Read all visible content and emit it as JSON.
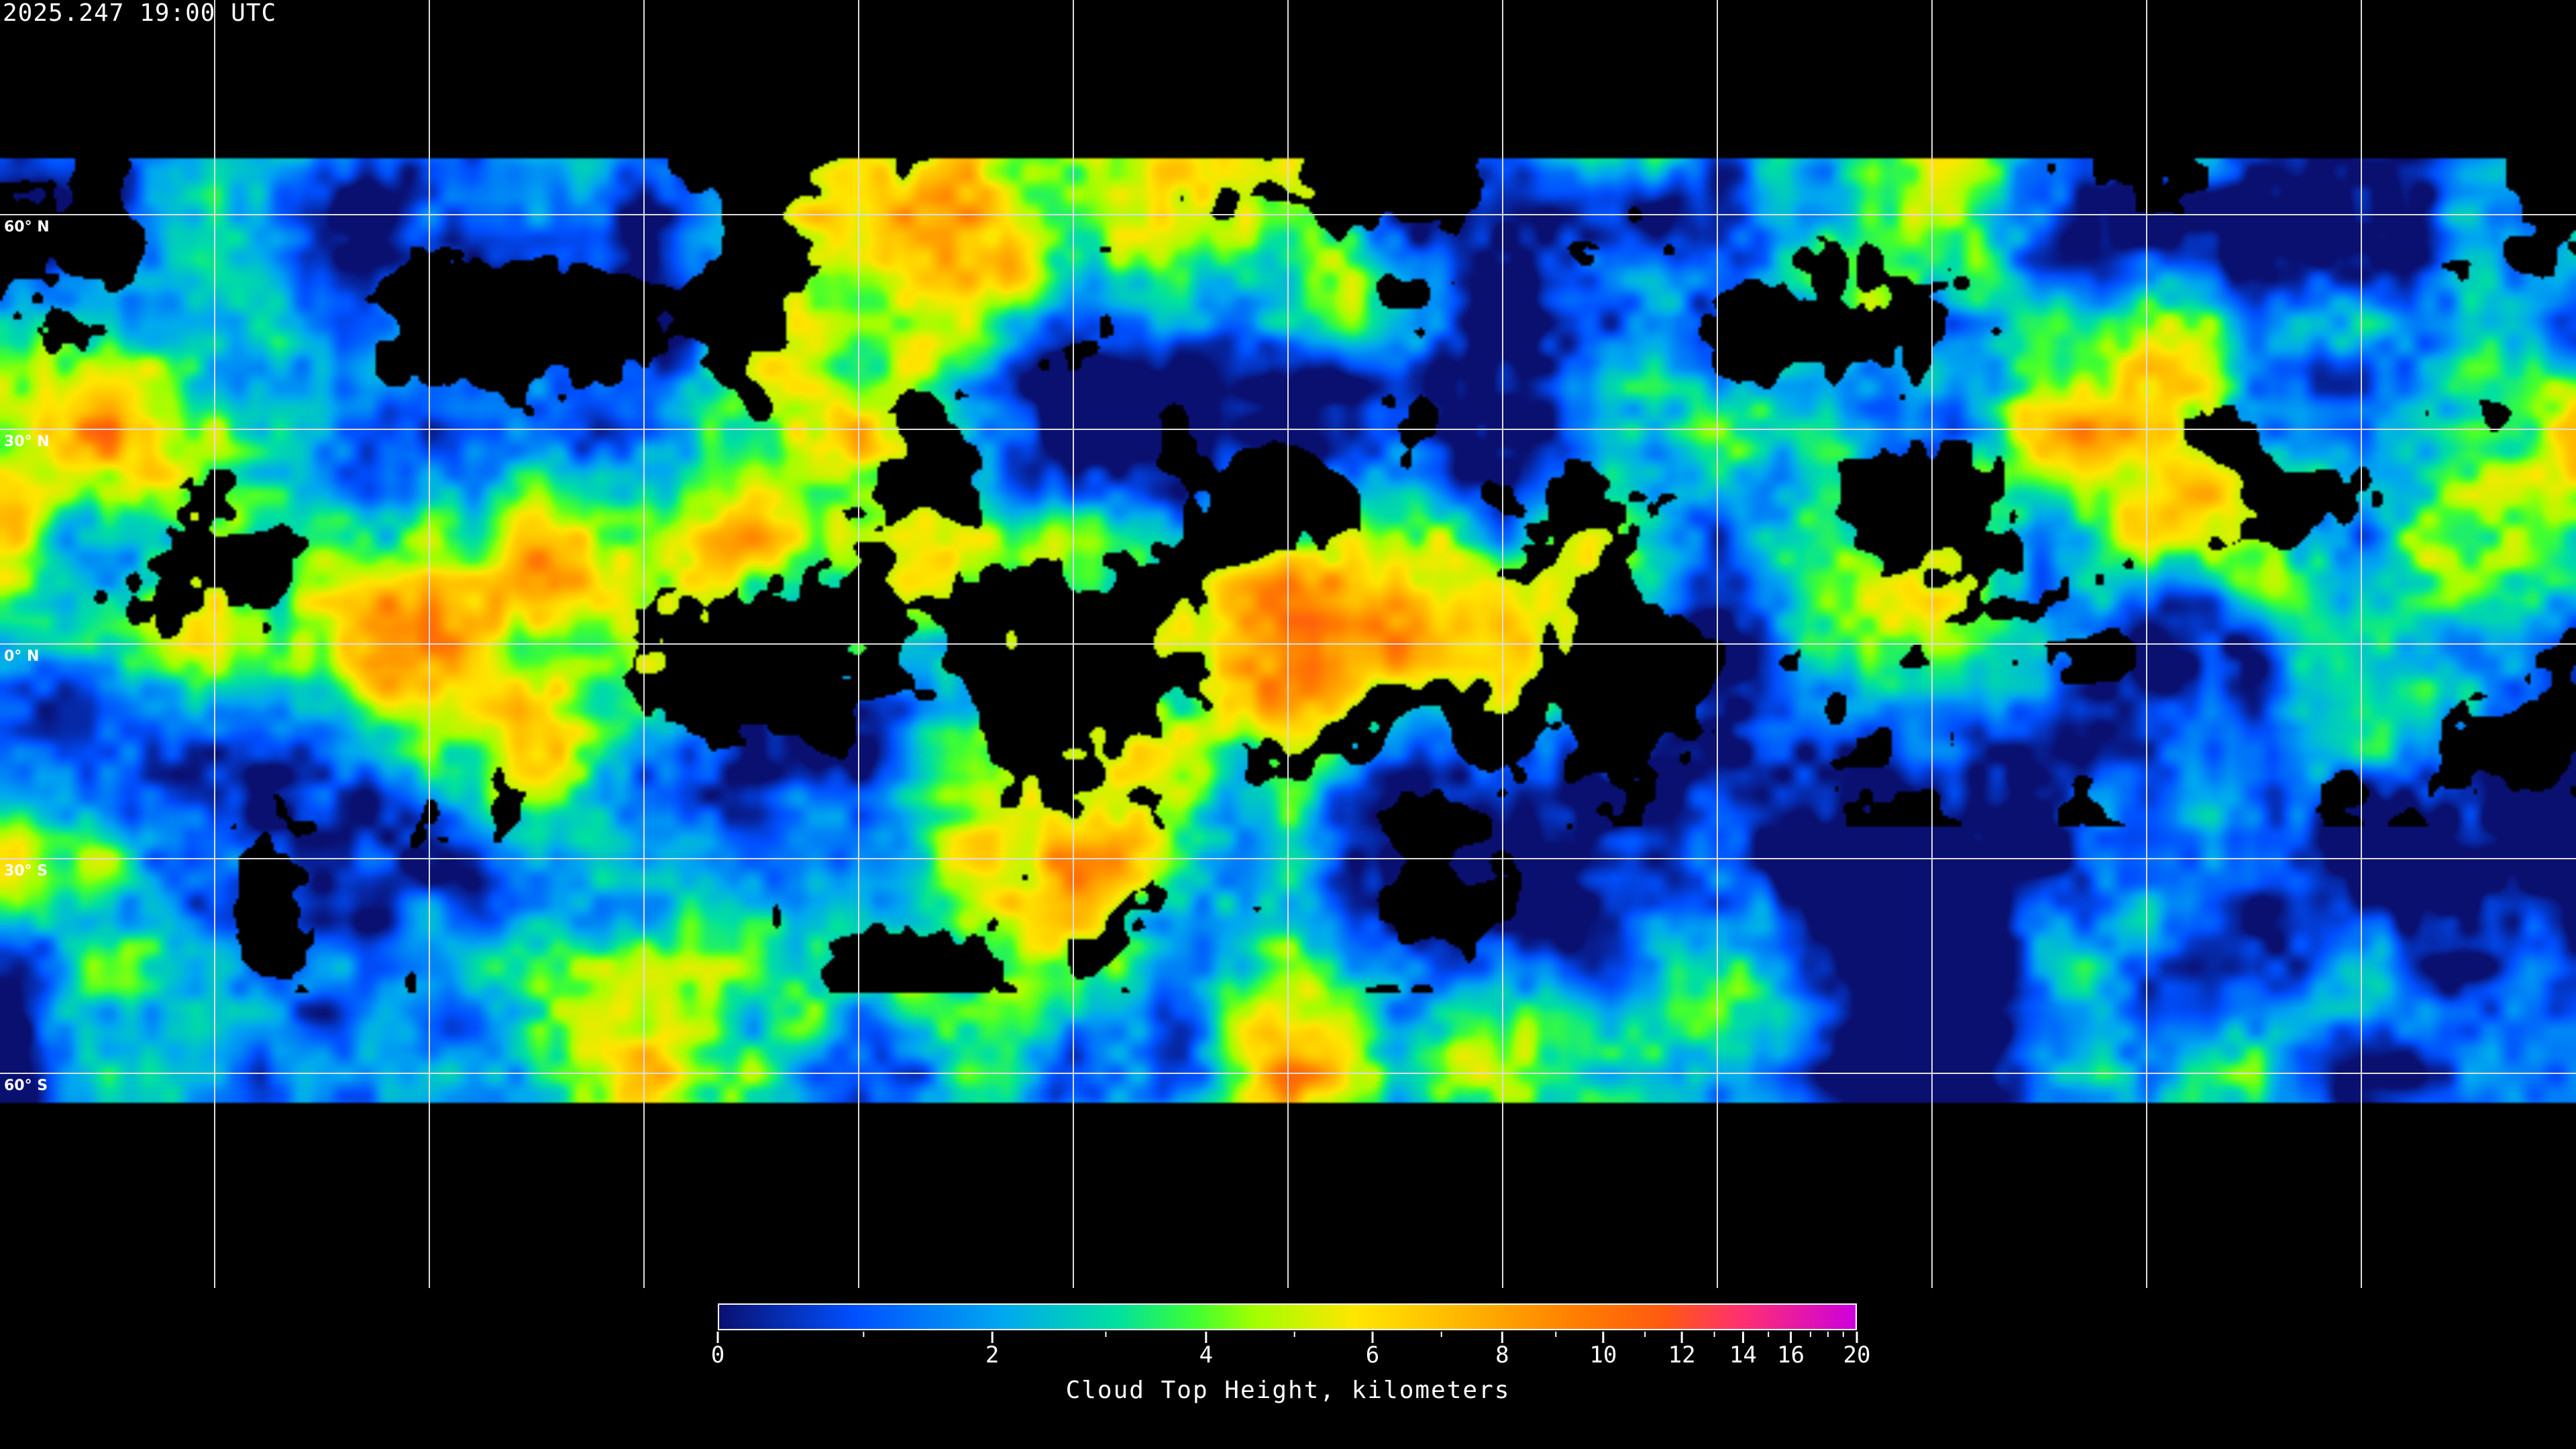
{
  "header": {
    "timestamp": "2025.247 19:00 UTC"
  },
  "map": {
    "projection": "equirectangular",
    "graticule_spacing_degrees": 30,
    "latitude_labels": [
      "60° N",
      "30° N",
      "0° N",
      "30° S",
      "60° S"
    ],
    "latitudes": [
      60,
      30,
      0,
      -30,
      -60
    ],
    "background": "#000000",
    "graticule_color": "#ffffff",
    "coastline_color": "#ffffff"
  },
  "colorbar": {
    "title": "Cloud Top Height, kilometers",
    "min": 0,
    "max": 20,
    "major_ticks": [
      0,
      2,
      4,
      6,
      8,
      10,
      12,
      14,
      16,
      20
    ],
    "major_tick_labels": [
      "0",
      "2",
      "4",
      "6",
      "8",
      "10",
      "12",
      "14",
      "16",
      "20"
    ],
    "minor_ticks": [
      1,
      3,
      5,
      7,
      9,
      11,
      13,
      15,
      17,
      18,
      19
    ],
    "colormap": [
      "#0a1070",
      "#0050ff",
      "#00a8f0",
      "#00e0a0",
      "#40ff30",
      "#a0ff00",
      "#ffe600",
      "#ffb800",
      "#ff8000",
      "#ff5a10",
      "#ff3070",
      "#cc00dd"
    ],
    "colormap_positions": [
      0,
      0.12,
      0.25,
      0.35,
      0.42,
      0.47,
      0.56,
      0.65,
      0.75,
      0.83,
      0.9,
      1
    ]
  }
}
